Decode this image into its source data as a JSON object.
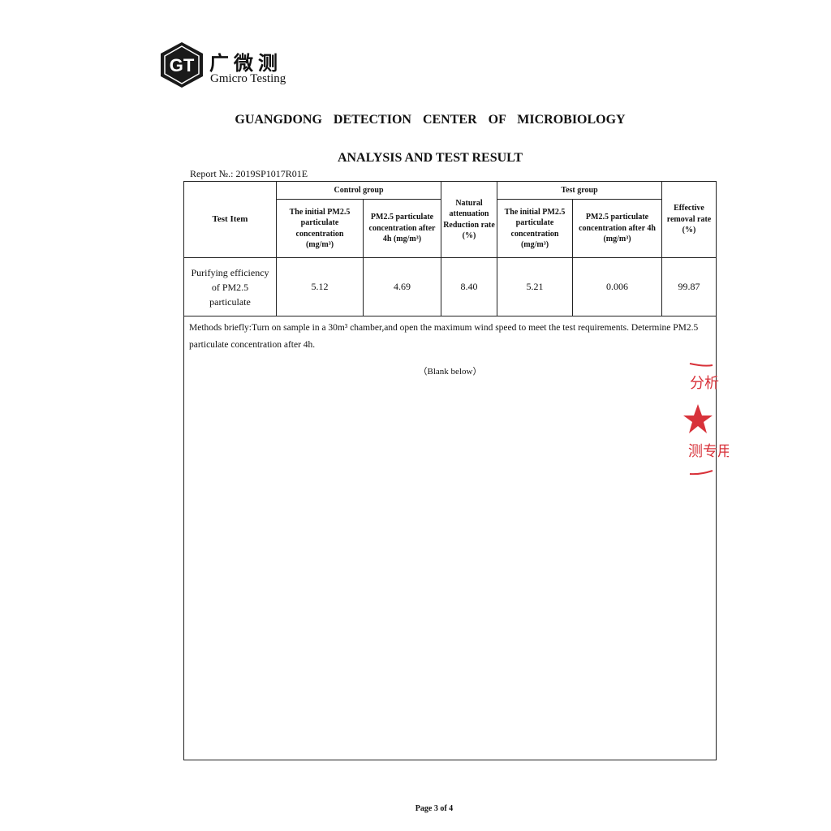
{
  "header": {
    "logo_letters": "GT",
    "logo_cn": "广微测",
    "logo_en": "Gmicro Testing",
    "organization": "GUANGDONG DETECTION CENTER OF MICROBIOLOGY",
    "title": "ANALYSIS AND TEST RESULT",
    "report_no": "Report №.: 2019SP1017R01E"
  },
  "table": {
    "headers": {
      "test_item": "Test Item",
      "control_group": "Control group",
      "control_initial": "The initial PM2.5 particulate concentration (mg/m³)",
      "control_after": "PM2.5 particulate concentration after 4h (mg/m³)",
      "natural": "Natural attenuation Reduction rate (%)",
      "test_group": "Test group",
      "test_initial": "The initial PM2.5 particulate concentration (mg/m³)",
      "test_after": "PM2.5 particulate concentration after 4h (mg/m³)",
      "removal": "Effective removal rate (%)"
    },
    "row": {
      "item": "Purifying efficiency of PM2.5 particulate",
      "control_initial": "5.12",
      "control_after": "4.69",
      "natural": "8.40",
      "test_initial": "5.21",
      "test_after": "0.006",
      "removal": "99.87"
    },
    "methods": "Methods briefly:Turn on sample in a 30m³ chamber,and open the maximum wind speed to meet the test requirements. Determine PM2.5 particulate concentration after 4h.",
    "blank": "（Blank below）"
  },
  "stamp_text": "分析 测专用",
  "footer": {
    "page": "Page 3 of 4"
  },
  "colors": {
    "stamp": "#d8323a",
    "logo": "#1a1a1a"
  }
}
